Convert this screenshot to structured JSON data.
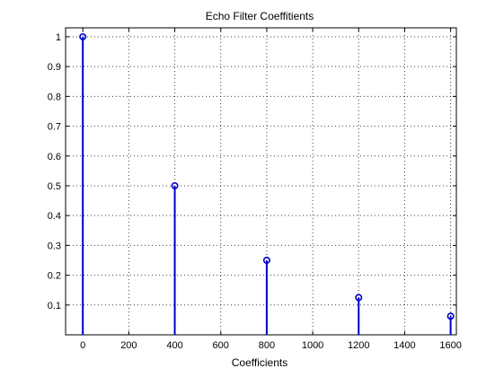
{
  "chart_data": {
    "type": "stem",
    "title": "Echo Filter Coeffitients",
    "xlabel": "Coefficients",
    "ylabel": "",
    "xlim": [
      -75,
      1625
    ],
    "ylim": [
      0,
      1.03
    ],
    "xticks": [
      0,
      200,
      400,
      600,
      800,
      1000,
      1200,
      1400,
      1600
    ],
    "yticks": [
      0.1,
      0.2,
      0.3,
      0.4,
      0.5,
      0.6,
      0.7,
      0.8,
      0.9,
      1
    ],
    "xtick_labels": [
      "0",
      "200",
      "400",
      "600",
      "800",
      "1000",
      "1200",
      "1400",
      "1600"
    ],
    "ytick_labels": [
      "0.1",
      "0.2",
      "0.3",
      "0.4",
      "0.5",
      "0.6",
      "0.7",
      "0.8",
      "0.9",
      "1"
    ],
    "grid": true,
    "series": [
      {
        "x": [
          0,
          400,
          800,
          1200,
          1600
        ],
        "y": [
          1,
          0.5,
          0.25,
          0.125,
          0.0625
        ]
      }
    ],
    "color": "#0000cc"
  }
}
